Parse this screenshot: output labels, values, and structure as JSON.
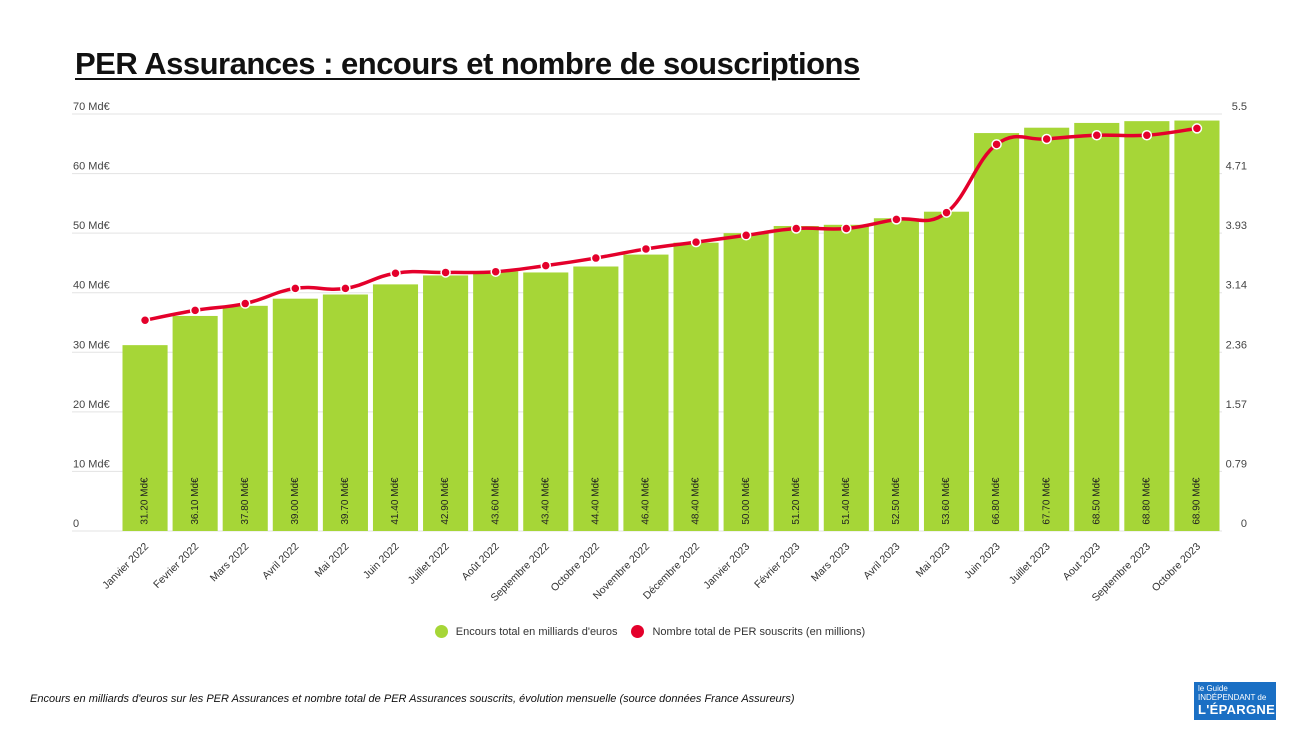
{
  "title": "PER Assurances : encours et nombre de souscriptions",
  "caption": "Encours en milliards d'euros sur les PER Assurances et nombre total de PER Assurances souscrits, évolution mensuelle (source données France Assureurs)",
  "logo": {
    "line1": "le Guide",
    "line2": "INDÉPENDANT de",
    "line3": "L'ÉPARGNE"
  },
  "colors": {
    "bars": "#a6d637",
    "line": "#e4002b",
    "grid": "#e3e3e3"
  },
  "chart_data": {
    "type": "bar+line",
    "categories": [
      "Janvier 2022",
      "Fevrier 2022",
      "Mars 2022",
      "Avril 2022",
      "Mai 2022",
      "Juin 2022",
      "Juillet 2022",
      "Août 2022",
      "Septembre 2022",
      "Octobre 2022",
      "Novembre 2022",
      "Décembre 2022",
      "Janvier 2023",
      "Février 2023",
      "Mars 2023",
      "Avril 2023",
      "Mai 2023",
      "Juin 2023",
      "Juillet 2023",
      "Aout 2023",
      "Septembre 2023",
      "Octobre 2023"
    ],
    "series": [
      {
        "name": "Encours total en milliards d'euros",
        "type": "bar",
        "axis": "left",
        "values": [
          31.2,
          36.1,
          37.8,
          39.0,
          39.7,
          41.4,
          42.9,
          43.6,
          43.4,
          44.4,
          46.4,
          48.4,
          50.0,
          51.2,
          51.4,
          52.5,
          53.6,
          66.8,
          67.7,
          68.5,
          68.8,
          68.9
        ],
        "labels": [
          "31.20 Md€",
          "36.10 Md€",
          "37.80 Md€",
          "39.00 Md€",
          "39.70 Md€",
          "41.40 Md€",
          "42.90 Md€",
          "43.60 Md€",
          "43.40 Md€",
          "44.40 Md€",
          "46.40 Md€",
          "48.40 Md€",
          "50.00 Md€",
          "51.20 Md€",
          "51.40 Md€",
          "52.50 Md€",
          "53.60 Md€",
          "66.80 Md€",
          "67.70 Md€",
          "68.50 Md€",
          "68.80 Md€",
          "68.90 Md€"
        ]
      },
      {
        "name": "Nombre total de PER souscrits (en millions)",
        "type": "line",
        "axis": "right",
        "values": [
          2.78,
          2.91,
          3.0,
          3.2,
          3.2,
          3.4,
          3.41,
          3.42,
          3.5,
          3.6,
          3.72,
          3.81,
          3.9,
          3.99,
          3.99,
          4.11,
          4.2,
          5.1,
          5.17,
          5.22,
          5.22,
          5.31
        ]
      }
    ],
    "y_left": {
      "range": [
        0,
        70
      ],
      "ticks": [
        "0",
        "10 Md€",
        "20 Md€",
        "30 Md€",
        "40 Md€",
        "50 Md€",
        "60 Md€",
        "70 Md€"
      ]
    },
    "y_right": {
      "range": [
        0,
        5.5
      ],
      "ticks": [
        "0",
        "0.79",
        "1.57",
        "2.36",
        "3.14",
        "3.93",
        "4.71",
        "5.5"
      ]
    },
    "grid": true,
    "legend": "bottom"
  }
}
